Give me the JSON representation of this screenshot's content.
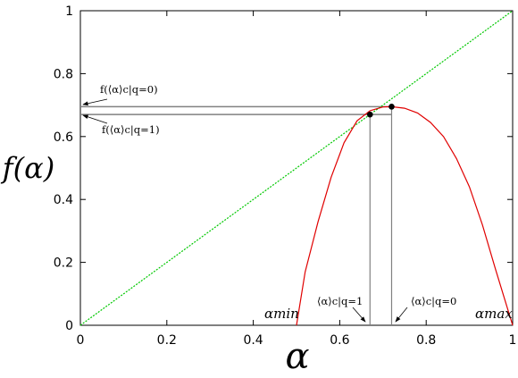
{
  "chart_data": {
    "type": "line",
    "xlabel": "α",
    "ylabel": "f(α)",
    "xlim": [
      0,
      1
    ],
    "ylim": [
      0,
      1
    ],
    "x_ticks": [
      "0",
      "0.2",
      "0.4",
      "0.6",
      "0.8",
      "1"
    ],
    "y_ticks": [
      "0",
      "0.2",
      "0.4",
      "0.6",
      "0.8",
      "1"
    ],
    "grid": false,
    "series": [
      {
        "kind": "identity-line",
        "color": "#00c800",
        "x": [
          0,
          1
        ],
        "y": [
          0,
          1
        ]
      },
      {
        "kind": "spectrum-curve",
        "color": "#e00000",
        "x": [
          0.5,
          0.52,
          0.55,
          0.58,
          0.61,
          0.64,
          0.67,
          0.7,
          0.72,
          0.75,
          0.78,
          0.81,
          0.84,
          0.87,
          0.9,
          0.93,
          0.96,
          0.98,
          1.0
        ],
        "y": [
          0.0,
          0.17,
          0.33,
          0.47,
          0.58,
          0.65,
          0.682,
          0.694,
          0.695,
          0.69,
          0.675,
          0.645,
          0.6,
          0.53,
          0.44,
          0.32,
          0.18,
          0.09,
          0.0
        ]
      }
    ],
    "points": [
      {
        "x": 0.67,
        "y": 0.67
      },
      {
        "x": 0.72,
        "y": 0.695
      }
    ],
    "guides": {
      "color": "#808080",
      "levels": [
        0.695,
        0.67
      ],
      "drops": [
        0.67,
        0.72
      ]
    },
    "annotations": {
      "f_q0": "f(⟨α⟩c|q=0)",
      "f_q1": "f(⟨α⟩c|q=1)",
      "alpha_q1": "⟨α⟩c|q=1",
      "alpha_q0": "⟨α⟩c|q=0",
      "alpha_min": "αmin",
      "alpha_max": "αmax"
    }
  }
}
